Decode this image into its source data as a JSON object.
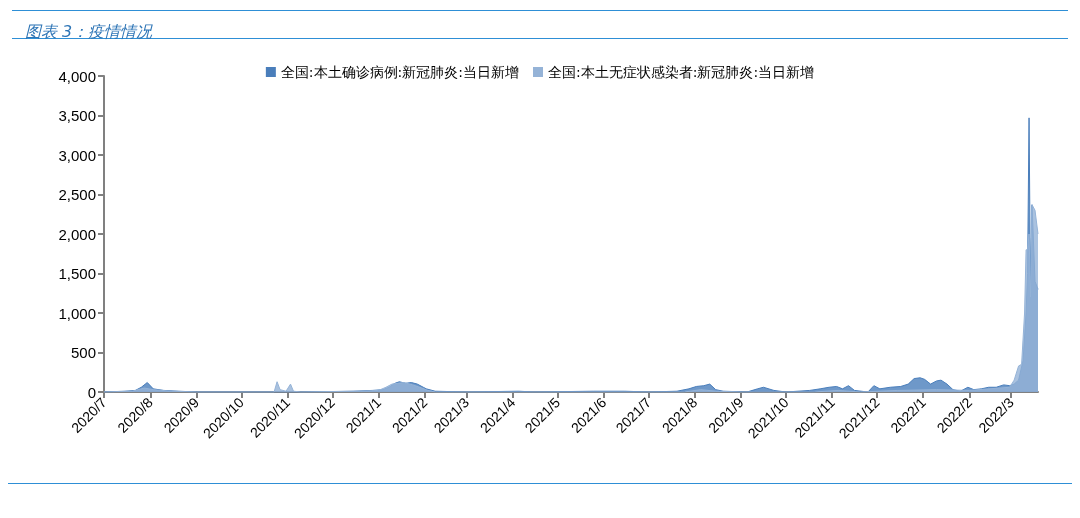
{
  "chart_data": {
    "type": "area",
    "title": "图表 3：疫情情况",
    "xlim": [
      "2020-07-01",
      "2022-03-19"
    ],
    "xticks": [
      {
        "value": "2020-07-01",
        "label": "2020/7"
      },
      {
        "value": "2020-08-01",
        "label": "2020/8"
      },
      {
        "value": "2020-09-01",
        "label": "2020/9"
      },
      {
        "value": "2020-10-01",
        "label": "2020/10"
      },
      {
        "value": "2020-11-01",
        "label": "2020/11"
      },
      {
        "value": "2020-12-01",
        "label": "2020/12"
      },
      {
        "value": "2021-01-01",
        "label": "2021/1"
      },
      {
        "value": "2021-02-01",
        "label": "2021/2"
      },
      {
        "value": "2021-03-01",
        "label": "2021/3"
      },
      {
        "value": "2021-04-01",
        "label": "2021/4"
      },
      {
        "value": "2021-05-01",
        "label": "2021/5"
      },
      {
        "value": "2021-06-01",
        "label": "2021/6"
      },
      {
        "value": "2021-07-01",
        "label": "2021/7"
      },
      {
        "value": "2021-08-01",
        "label": "2021/8"
      },
      {
        "value": "2021-09-01",
        "label": "2021/9"
      },
      {
        "value": "2021-10-01",
        "label": "2021/10"
      },
      {
        "value": "2021-11-01",
        "label": "2021/11"
      },
      {
        "value": "2021-12-01",
        "label": "2021/12"
      },
      {
        "value": "2022-01-01",
        "label": "2022/1"
      },
      {
        "value": "2022-02-01",
        "label": "2022/2"
      },
      {
        "value": "2022-03-01",
        "label": "2022/3"
      }
    ],
    "ylim": [
      0,
      4000
    ],
    "yticks": [
      0,
      {
        "value": 500,
        "label": "500"
      },
      {
        "value": 1000,
        "label": "1,000"
      },
      {
        "value": 1500,
        "label": "1,500"
      },
      {
        "value": 2000,
        "label": "2,000"
      },
      {
        "value": 2500,
        "label": "2,500"
      },
      {
        "value": 3000,
        "label": "3,000"
      },
      {
        "value": 3500,
        "label": "3,500"
      },
      {
        "value": 4000,
        "label": "4,000"
      }
    ],
    "legend": "top",
    "series": [
      {
        "name": "全国:本土确诊病例:新冠肺炎:当日新增",
        "color": "#4a7ebb",
        "x": [
          "2020-07-01",
          "2020-07-15",
          "2020-07-22",
          "2020-07-26",
          "2020-07-30",
          "2020-08-03",
          "2020-08-10",
          "2020-08-20",
          "2020-09-01",
          "2020-10-20",
          "2020-10-26",
          "2020-11-10",
          "2020-12-15",
          "2020-12-28",
          "2021-01-04",
          "2021-01-08",
          "2021-01-12",
          "2021-01-15",
          "2021-01-19",
          "2021-01-23",
          "2021-01-27",
          "2021-01-31",
          "2021-02-02",
          "2021-02-08",
          "2021-03-01",
          "2021-04-05",
          "2021-04-15",
          "2021-05-25",
          "2021-06-15",
          "2021-07-01",
          "2021-07-20",
          "2021-07-28",
          "2021-08-02",
          "2021-08-07",
          "2021-08-11",
          "2021-08-15",
          "2021-08-20",
          "2021-09-05",
          "2021-09-12",
          "2021-09-16",
          "2021-09-23",
          "2021-10-01",
          "2021-10-17",
          "2021-10-24",
          "2021-10-30",
          "2021-11-04",
          "2021-11-08",
          "2021-11-12",
          "2021-11-16",
          "2021-11-25",
          "2021-11-29",
          "2021-12-03",
          "2021-12-10",
          "2021-12-17",
          "2021-12-22",
          "2021-12-26",
          "2021-12-30",
          "2022-01-02",
          "2022-01-06",
          "2022-01-10",
          "2022-01-13",
          "2022-01-17",
          "2022-01-21",
          "2022-01-26",
          "2022-01-31",
          "2022-02-04",
          "2022-02-09",
          "2022-02-14",
          "2022-02-19",
          "2022-02-24",
          "2022-02-28",
          "2022-03-03",
          "2022-03-06",
          "2022-03-09",
          "2022-03-11",
          "2022-03-12",
          "2022-03-13",
          "2022-03-14",
          "2022-03-15",
          "2022-03-17",
          "2022-03-19"
        ],
        "values": [
          0,
          10,
          20,
          60,
          120,
          40,
          20,
          10,
          0,
          0,
          0,
          0,
          10,
          20,
          30,
          60,
          110,
          130,
          110,
          120,
          100,
          60,
          40,
          10,
          0,
          10,
          0,
          10,
          10,
          0,
          10,
          40,
          70,
          80,
          100,
          30,
          10,
          0,
          40,
          60,
          20,
          0,
          20,
          40,
          60,
          70,
          40,
          80,
          20,
          0,
          80,
          40,
          60,
          70,
          100,
          170,
          180,
          160,
          100,
          140,
          150,
          100,
          30,
          10,
          60,
          30,
          40,
          60,
          60,
          90,
          80,
          100,
          150,
          400,
          1000,
          1500,
          3470,
          1200,
          2370,
          1400,
          1300
        ]
      },
      {
        "name": "全国:本土无症状感染者:新冠肺炎:当日新增",
        "color": "#95b3d7",
        "x": [
          "2020-07-01",
          "2020-07-20",
          "2020-07-28",
          "2020-08-03",
          "2020-08-15",
          "2020-09-01",
          "2020-10-23",
          "2020-10-25",
          "2020-10-27",
          "2020-10-31",
          "2020-11-03",
          "2020-11-05",
          "2020-11-10",
          "2020-12-20",
          "2021-01-01",
          "2021-01-06",
          "2021-01-10",
          "2021-01-14",
          "2021-01-18",
          "2021-01-24",
          "2021-01-30",
          "2021-02-03",
          "2021-02-08",
          "2021-07-25",
          "2021-08-05",
          "2021-08-15",
          "2021-09-01",
          "2021-10-20",
          "2021-11-05",
          "2021-11-20",
          "2021-12-15",
          "2022-01-10",
          "2022-02-01",
          "2022-02-28",
          "2022-03-03",
          "2022-03-06",
          "2022-03-08",
          "2022-03-10",
          "2022-03-11",
          "2022-03-12",
          "2022-03-13",
          "2022-03-14",
          "2022-03-15",
          "2022-03-17",
          "2022-03-19"
        ],
        "values": [
          0,
          10,
          50,
          30,
          10,
          0,
          0,
          130,
          30,
          10,
          100,
          10,
          0,
          10,
          20,
          60,
          100,
          110,
          120,
          90,
          50,
          20,
          0,
          0,
          30,
          10,
          0,
          0,
          20,
          0,
          20,
          30,
          20,
          60,
          150,
          330,
          350,
          1000,
          1800,
          1800,
          2000,
          1200,
          2370,
          2300,
          2000
        ]
      }
    ]
  }
}
